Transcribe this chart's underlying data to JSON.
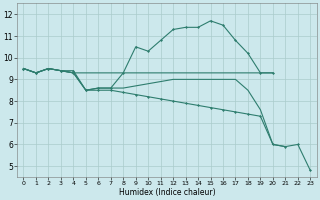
{
  "xlabel": "Humidex (Indice chaleur)",
  "bg_color": "#cce8ec",
  "grid_color": "#aacccc",
  "line_color": "#2e7d6e",
  "xlim": [
    -0.5,
    23.5
  ],
  "ylim": [
    4.5,
    12.5
  ],
  "xticks": [
    0,
    1,
    2,
    3,
    4,
    5,
    6,
    7,
    8,
    9,
    10,
    11,
    12,
    13,
    14,
    15,
    16,
    17,
    18,
    19,
    20,
    21,
    22,
    23
  ],
  "yticks": [
    5,
    6,
    7,
    8,
    9,
    10,
    11,
    12
  ],
  "line1_x": [
    0,
    1,
    2,
    3,
    4,
    5,
    6,
    7,
    8,
    9,
    10,
    11,
    12,
    13,
    14,
    15,
    16,
    17,
    18,
    19,
    20
  ],
  "line1_y": [
    9.5,
    9.3,
    9.5,
    9.4,
    9.4,
    8.5,
    8.6,
    8.6,
    9.3,
    10.5,
    10.3,
    10.8,
    11.3,
    11.4,
    11.4,
    11.7,
    11.5,
    10.8,
    10.2,
    9.3,
    9.3
  ],
  "line2_x": [
    0,
    1,
    2,
    3,
    4,
    5,
    6,
    7,
    8,
    9,
    10,
    11,
    12,
    13,
    14,
    15,
    16,
    17,
    18,
    19,
    20
  ],
  "line2_y": [
    9.5,
    9.3,
    9.5,
    9.4,
    9.3,
    9.3,
    9.3,
    9.3,
    9.3,
    9.3,
    9.3,
    9.3,
    9.3,
    9.3,
    9.3,
    9.3,
    9.3,
    9.3,
    9.3,
    9.3,
    9.3
  ],
  "line3_x": [
    0,
    1,
    2,
    3,
    4,
    5,
    6,
    7,
    8,
    9,
    10,
    11,
    12,
    13,
    14,
    15,
    16,
    17,
    18,
    19,
    20,
    21,
    22,
    23
  ],
  "line3_y": [
    9.5,
    9.3,
    9.5,
    9.4,
    9.3,
    8.5,
    8.6,
    8.6,
    8.6,
    8.7,
    8.8,
    8.9,
    9.0,
    9.0,
    9.0,
    9.0,
    9.0,
    9.0,
    8.5,
    7.6,
    6.0,
    5.9,
    null,
    null
  ],
  "line4_x": [
    0,
    1,
    2,
    3,
    4,
    5,
    6,
    7,
    8,
    9,
    10,
    11,
    12,
    13,
    14,
    15,
    16,
    17,
    18,
    19,
    20,
    21,
    22,
    23
  ],
  "line4_y": [
    9.5,
    9.3,
    9.5,
    9.4,
    9.3,
    8.5,
    8.5,
    8.5,
    8.4,
    8.3,
    8.2,
    8.1,
    8.0,
    7.9,
    7.8,
    7.7,
    7.6,
    7.5,
    7.4,
    7.3,
    6.0,
    5.9,
    6.0,
    4.8
  ]
}
